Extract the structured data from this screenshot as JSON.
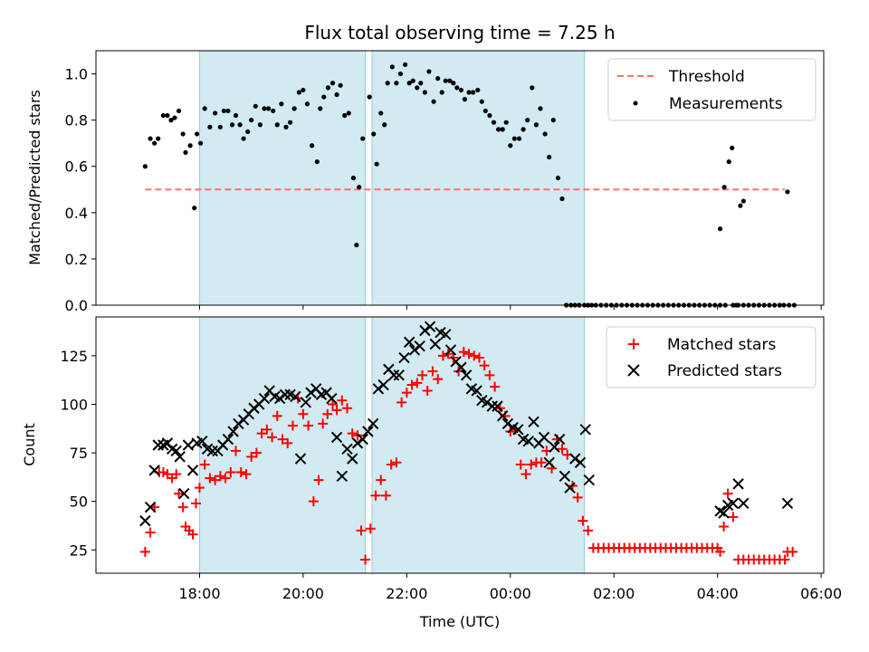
{
  "chart_data": [
    {
      "type": "scatter",
      "title": "Flux total observing time = 7.25 h",
      "ylabel": "Matched/Predicted stars",
      "xlabel": "",
      "ylim": [
        0,
        1.1
      ],
      "yticks": [
        "0.0",
        "0.2",
        "0.4",
        "0.6",
        "0.8",
        "1.0"
      ],
      "legend_position": "top-right",
      "shaded_hour_ranges": [
        [
          18.0,
          21.2
        ],
        [
          21.33,
          25.43
        ]
      ],
      "threshold": {
        "name": "Threshold",
        "value": 0.5,
        "x_range": [
          16.95,
          29.3
        ],
        "color": "#ff7070"
      },
      "series": [
        {
          "name": "Measurements",
          "color": "#000000",
          "x": [
            16.95,
            17.05,
            17.13,
            17.2,
            17.3,
            17.38,
            17.45,
            17.52,
            17.6,
            17.68,
            17.73,
            17.82,
            17.9,
            17.95,
            18.02,
            18.1,
            18.2,
            18.3,
            18.4,
            18.47,
            18.55,
            18.63,
            18.7,
            18.78,
            18.85,
            18.93,
            19.0,
            19.08,
            19.17,
            19.25,
            19.33,
            19.42,
            19.5,
            19.58,
            19.67,
            19.75,
            19.83,
            19.92,
            20.0,
            20.08,
            20.17,
            20.27,
            20.33,
            20.4,
            20.48,
            20.57,
            20.65,
            20.72,
            20.8,
            20.88,
            20.97,
            21.03,
            21.08,
            21.15,
            21.28,
            21.36,
            21.42,
            21.5,
            21.57,
            21.63,
            21.72,
            21.8,
            21.88,
            21.97,
            22.05,
            22.12,
            22.2,
            22.27,
            22.35,
            22.43,
            22.52,
            22.6,
            22.68,
            22.75,
            22.83,
            22.9,
            22.97,
            23.05,
            23.12,
            23.2,
            23.28,
            23.37,
            23.45,
            23.52,
            23.6,
            23.68,
            23.77,
            23.85,
            23.92,
            24.0,
            24.08,
            24.17,
            24.25,
            24.33,
            24.42,
            24.5,
            24.58,
            24.67,
            24.75,
            24.83,
            24.92,
            25.0,
            25.08,
            25.17,
            25.25,
            25.33,
            25.43,
            25.5,
            25.57
          ],
          "y": [
            0.6,
            0.72,
            0.7,
            0.72,
            0.82,
            0.82,
            0.8,
            0.81,
            0.84,
            0.74,
            0.66,
            0.69,
            0.42,
            0.74,
            0.7,
            0.85,
            0.77,
            0.83,
            0.77,
            0.84,
            0.84,
            0.78,
            0.82,
            0.78,
            0.72,
            0.75,
            0.8,
            0.86,
            0.78,
            0.85,
            0.85,
            0.84,
            0.78,
            0.87,
            0.77,
            0.79,
            0.85,
            0.92,
            0.93,
            0.87,
            0.69,
            0.62,
            0.85,
            0.9,
            0.94,
            0.96,
            0.91,
            0.95,
            0.82,
            0.83,
            0.55,
            0.26,
            0.51,
            0.72,
            0.9,
            0.74,
            0.61,
            0.83,
            0.78,
            0.96,
            1.03,
            0.96,
            1.0,
            1.04,
            0.96,
            0.97,
            0.94,
            0.96,
            0.92,
            1.01,
            0.88,
            0.98,
            0.92,
            0.97,
            0.97,
            0.96,
            0.94,
            0.93,
            0.89,
            0.92,
            0.92,
            0.93,
            0.88,
            0.84,
            0.82,
            0.79,
            0.76,
            0.76,
            0.79,
            0.69,
            0.72,
            0.72,
            0.76,
            0.8,
            0.94,
            0.78,
            0.85,
            0.74,
            0.64,
            0.8,
            0.55,
            0.46,
            0.0,
            0.0,
            0.0,
            0.0,
            0.0,
            0.0,
            0.0
          ]
        },
        {
          "name": "",
          "color": "#000000",
          "x": [
            25.65,
            25.75,
            25.85,
            25.95,
            26.05,
            26.15,
            26.25,
            26.35,
            26.45,
            26.55,
            26.65,
            26.75,
            26.85,
            26.95,
            27.05,
            27.15,
            27.25,
            27.35,
            27.45,
            27.55,
            27.65,
            27.75,
            27.85,
            27.95,
            28.05,
            28.15,
            28.3,
            28.4,
            28.5,
            28.6,
            28.7,
            28.8,
            28.9,
            29.0,
            29.1,
            29.2,
            29.28,
            29.38,
            29.48
          ],
          "y": [
            0,
            0,
            0,
            0,
            0,
            0,
            0,
            0,
            0,
            0,
            0,
            0,
            0,
            0,
            0,
            0,
            0,
            0,
            0,
            0,
            0,
            0,
            0,
            0,
            0,
            0,
            0,
            0,
            0,
            0,
            0,
            0,
            0,
            0,
            0,
            0,
            0,
            0,
            0
          ]
        },
        {
          "name": "",
          "color": "#000000",
          "x": [
            28.05,
            28.13,
            28.22,
            28.28,
            28.36,
            28.44,
            28.5,
            29.35
          ],
          "y": [
            0.33,
            0.51,
            0.62,
            0.68,
            0.0,
            0.43,
            0.45,
            0.49
          ]
        }
      ]
    },
    {
      "type": "scatter",
      "xlabel": "Time (UTC)",
      "ylabel": "Count",
      "xlim_hours": [
        16.0,
        30.05
      ],
      "xticks": [
        "18:00",
        "20:00",
        "22:00",
        "00:00",
        "02:00",
        "04:00",
        "06:00"
      ],
      "ylim": [
        13,
        145
      ],
      "yticks": [
        "25",
        "50",
        "75",
        "100",
        "125"
      ],
      "legend_position": "top-right",
      "shaded_hour_ranges": [
        [
          18.0,
          21.2
        ],
        [
          21.33,
          25.43
        ]
      ],
      "series": [
        {
          "name": "Matched stars",
          "color": "#ff0000",
          "x": [
            16.95,
            17.05,
            17.13,
            17.22,
            17.3,
            17.38,
            17.47,
            17.55,
            17.6,
            17.68,
            17.73,
            17.8,
            17.87,
            17.93,
            18.0,
            18.1,
            18.2,
            18.3,
            18.4,
            18.5,
            18.6,
            18.7,
            18.8,
            18.9,
            19.0,
            19.1,
            19.2,
            19.3,
            19.4,
            19.5,
            19.6,
            19.7,
            19.8,
            19.9,
            20.0,
            20.1,
            20.2,
            20.3,
            20.38,
            20.47,
            20.57,
            20.65,
            20.75,
            20.85,
            20.95,
            21.05,
            21.12,
            21.2,
            21.3,
            21.4,
            21.5,
            21.6,
            21.7,
            21.8,
            21.9,
            22.0,
            22.1,
            22.2,
            22.3,
            22.4,
            22.5,
            22.6,
            22.7,
            22.8,
            22.9,
            23.0,
            23.1,
            23.2,
            23.3,
            23.4,
            23.5,
            23.6,
            23.7,
            23.8,
            23.9,
            24.0,
            24.1,
            24.2,
            24.3,
            24.4,
            24.5,
            24.6,
            24.7,
            24.8,
            24.9,
            25.0,
            25.1,
            25.2,
            25.3,
            25.4,
            25.5
          ],
          "y": [
            24,
            34,
            47,
            65,
            65,
            64,
            62,
            64,
            54,
            47,
            37,
            35,
            33,
            49,
            57,
            69,
            62,
            61,
            63,
            62,
            65,
            76,
            65,
            64,
            73,
            75,
            85,
            87,
            83,
            94,
            82,
            80,
            89,
            103,
            95,
            89,
            50,
            61,
            90,
            95,
            100,
            97,
            102,
            98,
            85,
            84,
            35,
            20,
            36,
            53,
            61,
            53,
            69,
            70,
            101,
            106,
            110,
            111,
            115,
            107,
            117,
            113,
            125,
            126,
            124,
            117,
            127,
            126,
            125,
            124,
            120,
            115,
            109,
            98,
            94,
            86,
            87,
            69,
            64,
            69,
            70,
            70,
            76,
            67,
            82,
            77,
            74,
            58,
            52,
            40,
            35
          ]
        },
        {
          "name": "",
          "color": "#ff0000",
          "x": [
            25.6,
            25.7,
            25.8,
            25.9,
            26.0,
            26.1,
            26.2,
            26.3,
            26.4,
            26.5,
            26.6,
            26.7,
            26.8,
            26.9,
            27.0,
            27.1,
            27.2,
            27.3,
            27.4,
            27.5,
            27.6,
            27.7,
            27.8,
            27.9,
            28.0,
            28.05,
            28.12,
            28.2,
            28.3,
            28.4,
            28.5,
            28.6,
            28.7,
            28.8,
            28.9,
            29.0,
            29.1,
            29.2,
            29.3,
            29.35,
            29.45
          ],
          "y": [
            26,
            26,
            26,
            26,
            26,
            26,
            26,
            26,
            26,
            26,
            26,
            26,
            26,
            26,
            26,
            26,
            26,
            26,
            26,
            26,
            26,
            26,
            26,
            26,
            26,
            24,
            37,
            54,
            42,
            20,
            20,
            20,
            20,
            20,
            20,
            20,
            20,
            20,
            20,
            24,
            24
          ]
        },
        {
          "name": "Predicted stars",
          "color": "#000000",
          "x": [
            16.95,
            17.05,
            17.13,
            17.2,
            17.3,
            17.38,
            17.47,
            17.55,
            17.62,
            17.7,
            17.78,
            17.87,
            17.95,
            18.05,
            18.15,
            18.25,
            18.35,
            18.45,
            18.55,
            18.65,
            18.75,
            18.85,
            18.95,
            19.05,
            19.15,
            19.25,
            19.35,
            19.45,
            19.55,
            19.65,
            19.75,
            19.85,
            19.95,
            20.05,
            20.15,
            20.25,
            20.35,
            20.45,
            20.55,
            20.65,
            20.75,
            20.85,
            20.95,
            21.05,
            21.15,
            21.25,
            21.35,
            21.45,
            21.55,
            21.65,
            21.75,
            21.85,
            21.95,
            22.05,
            22.15,
            22.25,
            22.35,
            22.45,
            22.55,
            22.65,
            22.75,
            22.85,
            22.95,
            23.05,
            23.15,
            23.25,
            23.35,
            23.45,
            23.55,
            23.65,
            23.75,
            23.85,
            23.95,
            24.05,
            24.15,
            24.25,
            24.35,
            24.45,
            24.55,
            24.65,
            24.75,
            24.85,
            24.95,
            25.05,
            25.15,
            25.25,
            25.35,
            25.45,
            25.52,
            28.05,
            28.12,
            28.2,
            28.3,
            28.4,
            28.5,
            29.35
          ],
          "y": [
            40,
            47,
            66,
            79,
            79,
            80,
            77,
            76,
            73,
            54,
            79,
            66,
            80,
            81,
            77,
            76,
            76,
            79,
            82,
            86,
            90,
            92,
            95,
            98,
            100,
            103,
            107,
            104,
            103,
            105,
            105,
            104,
            72,
            101,
            106,
            108,
            105,
            106,
            103,
            83,
            63,
            77,
            72,
            80,
            82,
            86,
            90,
            108,
            110,
            118,
            115,
            115,
            124,
            132,
            128,
            130,
            138,
            140,
            131,
            137,
            136,
            128,
            122,
            119,
            115,
            108,
            107,
            102,
            101,
            99,
            99,
            94,
            90,
            88,
            87,
            82,
            81,
            91,
            80,
            83,
            70,
            78,
            82,
            63,
            57,
            72,
            70,
            87,
            61,
            45,
            44,
            48,
            49,
            59,
            49,
            49
          ]
        }
      ]
    }
  ]
}
